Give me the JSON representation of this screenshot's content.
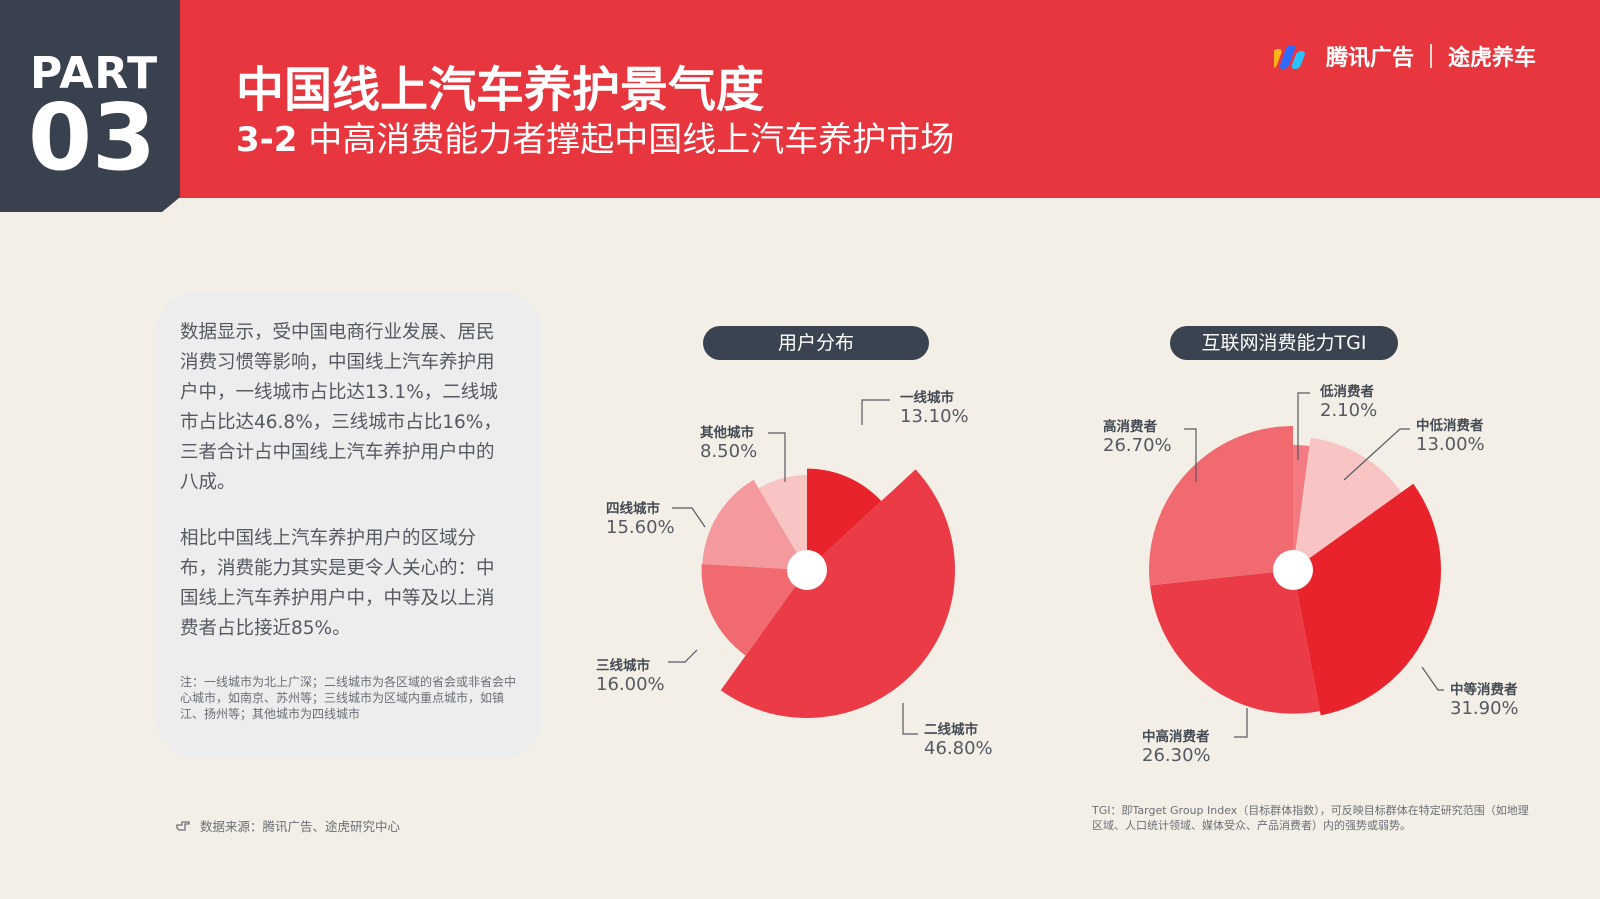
{
  "header": {
    "part_label": "PART",
    "part_number": "03",
    "title": "中国线上汽车养护景气度",
    "subtitle_num": "3-2",
    "subtitle_text": "中高消费能力者撑起中国线上汽车养护市场",
    "brand_left": "腾讯广告",
    "brand_right": "途虎养车"
  },
  "colors": {
    "header_red": "#e8363f",
    "part_block": "#38414d",
    "background": "#f3efe6"
  },
  "text": {
    "para1": "数据显示，受中国电商行业发展、居民消费习惯等影响，中国线上汽车养护用户中，一线城市占比达13.1%，二线城市占比达46.8%，三线城市占比16%，三者合计占中国线上汽车养护用户中的八成。",
    "para2": "相比中国线上汽车养护用户的区域分布，消费能力其实是更令人关心的：中国线上汽车养护用户中，中等及以上消费者占比接近85%。",
    "note": "注：一线城市为北上广深；二线城市为各区域的省会或非省会中心城市，如南京、苏州等；三线城市为区域内重点城市，如镇江、扬州等；其他城市为四线城市",
    "source": "数据来源：腾讯广告、途虎研究中心",
    "tgi_note": "TGI：即Target Group Index（目标群体指数），可反映目标群体在特定研究范围（如地理区域、人口统计领域、媒体受众、产品消费者）内的强势或弱势。"
  },
  "chart_data": [
    {
      "type": "pie",
      "title": "用户分布",
      "categories": [
        "一线城市",
        "二线城市",
        "三线城市",
        "四线城市",
        "其他城市"
      ],
      "values": [
        13.1,
        46.8,
        16.0,
        15.6,
        8.5
      ],
      "value_labels": [
        "13.10%",
        "46.80%",
        "16.00%",
        "15.60%",
        "8.50%"
      ],
      "colors": [
        "#e8232b",
        "#ea3b47",
        "#f06a70",
        "#f4999d",
        "#f8c4c4"
      ]
    },
    {
      "type": "pie",
      "title": "互联网消费能力TGI",
      "categories": [
        "低消费者",
        "中低消费者",
        "中等消费者",
        "中高消费者",
        "高消费者"
      ],
      "values": [
        2.1,
        13.0,
        31.9,
        26.3,
        26.7
      ],
      "value_labels": [
        "2.10%",
        "13.00%",
        "31.90%",
        "26.30%",
        "26.70%"
      ],
      "colors": [
        "#f27a80",
        "#f8c4c4",
        "#e8232b",
        "#ea3b47",
        "#f06a70"
      ]
    }
  ]
}
